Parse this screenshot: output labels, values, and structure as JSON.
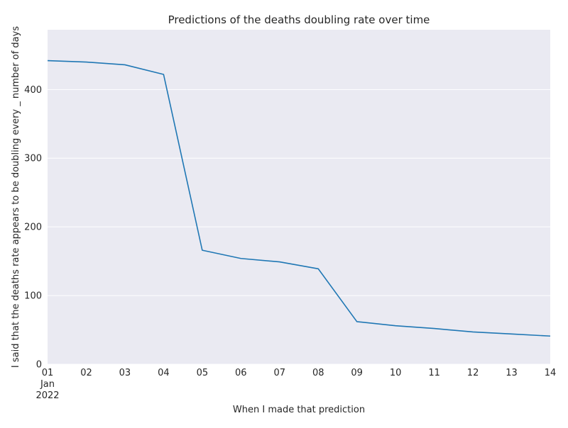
{
  "chart_data": {
    "type": "line",
    "title": "Predictions of the deaths doubling rate over time",
    "xlabel": "When I made that prediction",
    "ylabel": "I said that the deaths rate appears to be doubling every _ number of days",
    "x_tick_labels": [
      "01",
      "02",
      "03",
      "04",
      "05",
      "06",
      "07",
      "08",
      "09",
      "10",
      "11",
      "12",
      "13",
      "14"
    ],
    "x_secondary_labels": [
      "Jan",
      "2022"
    ],
    "x": [
      "2022-01-01",
      "2022-01-02",
      "2022-01-03",
      "2022-01-04",
      "2022-01-05",
      "2022-01-06",
      "2022-01-07",
      "2022-01-08",
      "2022-01-09",
      "2022-01-10",
      "2022-01-11",
      "2022-01-12",
      "2022-01-13",
      "2022-01-14"
    ],
    "series": [
      {
        "values": [
          442,
          440,
          436,
          422,
          166,
          154,
          149,
          139,
          62,
          56,
          52,
          47,
          44,
          41
        ],
        "color": "#1f77b4"
      }
    ],
    "ylim": [
      0,
      487
    ],
    "y_ticks": [
      0,
      100,
      200,
      300,
      400
    ],
    "grid": true,
    "grid_axis": "y",
    "background": "#eaeaf2",
    "grid_color": "#ffffff",
    "legend": "none"
  }
}
